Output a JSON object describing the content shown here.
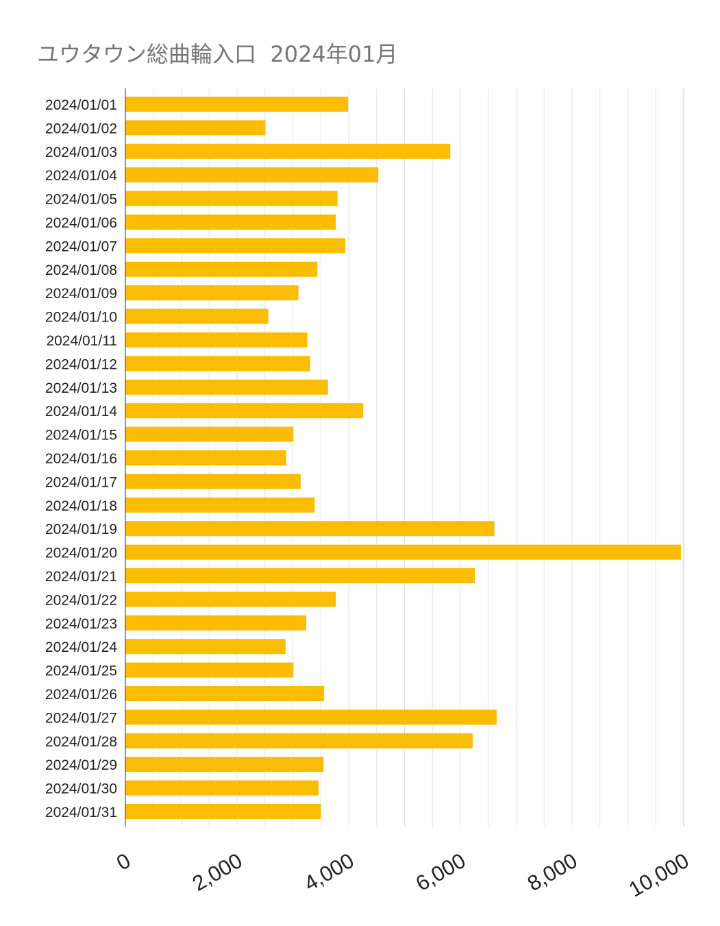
{
  "chart_data": {
    "type": "bar",
    "orientation": "horizontal",
    "title": "ユウタウン総曲輪入口  2024年01月",
    "xlabel": "",
    "ylabel": "",
    "xlim": [
      0,
      10000
    ],
    "x_ticks": [
      "0",
      "2,000",
      "4,000",
      "6,000",
      "8,000",
      "10,000"
    ],
    "x_tick_values": [
      0,
      2000,
      4000,
      6000,
      8000,
      10000
    ],
    "minor_grid_step": 500,
    "grid": true,
    "bar_color": "#FBBC04",
    "categories": [
      "2024/01/01",
      "2024/01/02",
      "2024/01/03",
      "2024/01/04",
      "2024/01/05",
      "2024/01/06",
      "2024/01/07",
      "2024/01/08",
      "2024/01/09",
      "2024/01/10",
      "2024/01/11",
      "2024/01/12",
      "2024/01/13",
      "2024/01/14",
      "2024/01/15",
      "2024/01/16",
      "2024/01/17",
      "2024/01/18",
      "2024/01/19",
      "2024/01/20",
      "2024/01/21",
      "2024/01/22",
      "2024/01/23",
      "2024/01/24",
      "2024/01/25",
      "2024/01/26",
      "2024/01/27",
      "2024/01/28",
      "2024/01/29",
      "2024/01/30",
      "2024/01/31"
    ],
    "values": [
      3990,
      2510,
      5820,
      4530,
      3800,
      3770,
      3940,
      3440,
      3100,
      2560,
      3260,
      3310,
      3630,
      4260,
      3010,
      2880,
      3140,
      3390,
      6610,
      9950,
      6260,
      3770,
      3240,
      2870,
      3010,
      3560,
      6650,
      6220,
      3550,
      3460,
      3500
    ]
  }
}
